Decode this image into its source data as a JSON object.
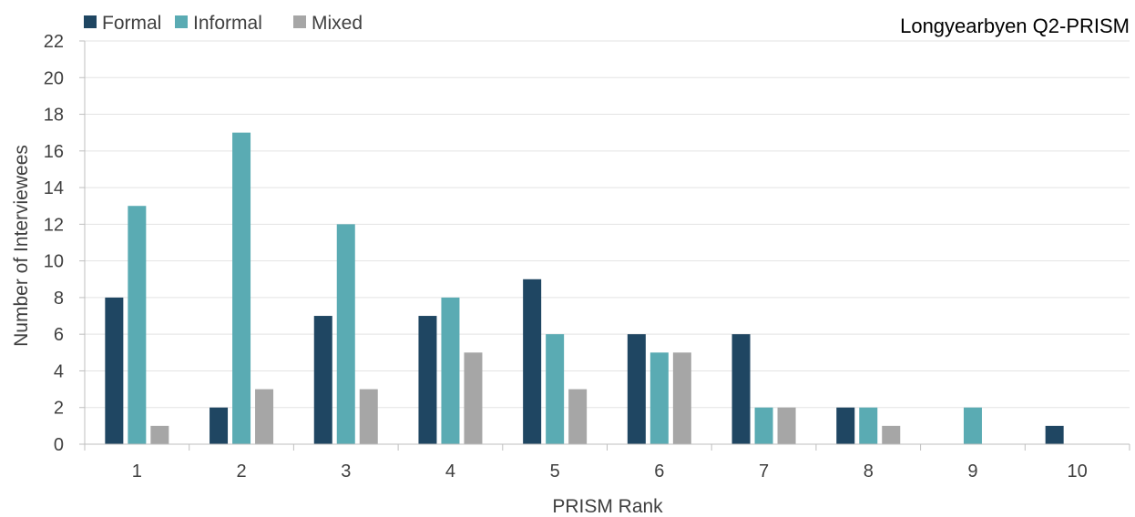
{
  "chart_data": {
    "type": "bar",
    "title": "Longyearbyen Q2-PRISM",
    "xlabel": "PRISM Rank",
    "ylabel": "Number of Interviewees",
    "categories": [
      "1",
      "2",
      "3",
      "4",
      "5",
      "6",
      "7",
      "8",
      "9",
      "10"
    ],
    "ylim": [
      0,
      22
    ],
    "yticks": [
      0,
      2,
      4,
      6,
      8,
      10,
      12,
      14,
      16,
      18,
      20,
      22
    ],
    "grid": "horizontal",
    "legend_position": "top-left",
    "series": [
      {
        "name": "Formal",
        "color": "#1f4662",
        "values": [
          8,
          2,
          7,
          7,
          9,
          6,
          6,
          2,
          0,
          1
        ]
      },
      {
        "name": "Informal",
        "color": "#5aabb3",
        "values": [
          13,
          17,
          12,
          8,
          6,
          5,
          2,
          2,
          2,
          0
        ]
      },
      {
        "name": "Mixed",
        "color": "#a6a6a6",
        "values": [
          1,
          3,
          3,
          5,
          3,
          5,
          2,
          1,
          0,
          0
        ]
      }
    ]
  }
}
